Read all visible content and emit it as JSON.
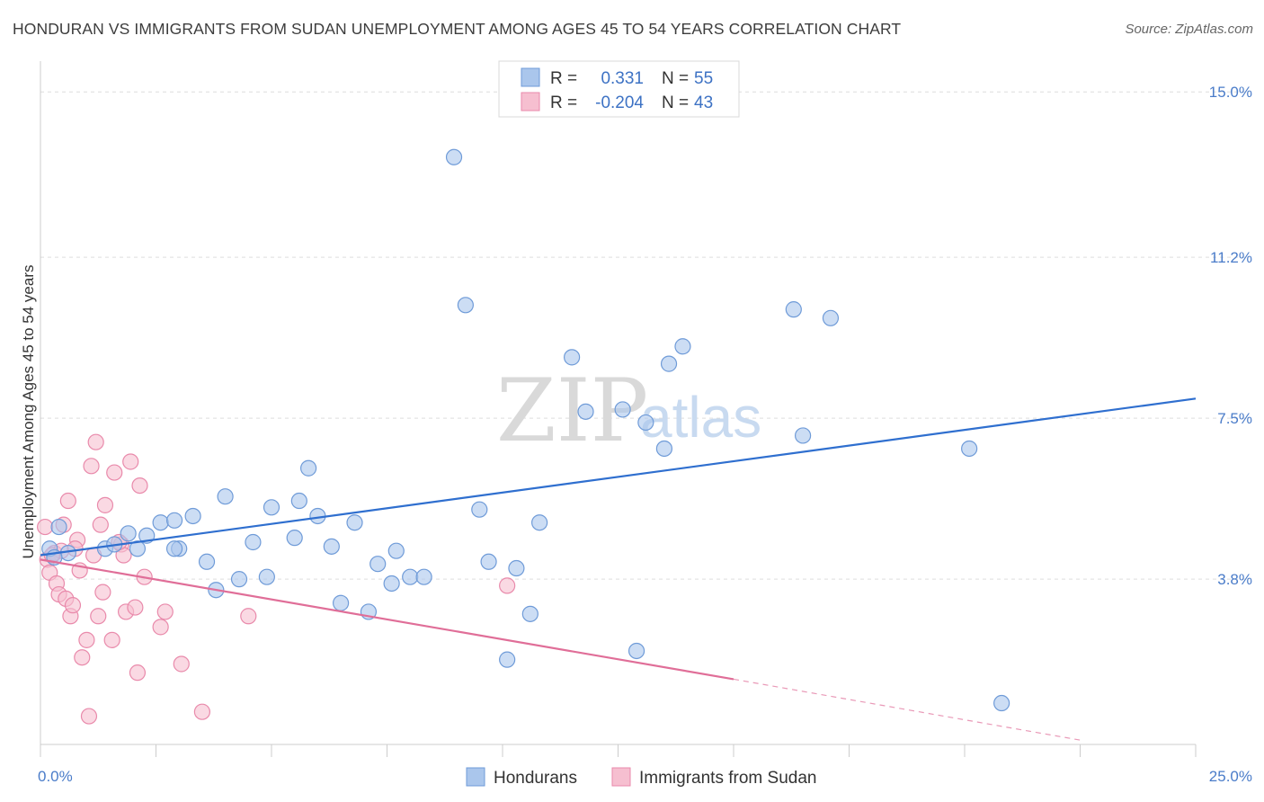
{
  "title": "HONDURAN VS IMMIGRANTS FROM SUDAN UNEMPLOYMENT AMONG AGES 45 TO 54 YEARS CORRELATION CHART",
  "source": "Source: ZipAtlas.com",
  "watermark": {
    "zip": "ZIP",
    "atlas": "atlas"
  },
  "colors": {
    "blue_fill": "#aac6ec",
    "blue_stroke": "#6f9bd8",
    "blue_line": "#2f6fcf",
    "pink_fill": "#f6bfd0",
    "pink_stroke": "#e98aab",
    "pink_line": "#e06e98",
    "grid": "#dddddd",
    "tick_label": "#4a7cc9"
  },
  "legend": {
    "rows": [
      {
        "r_label": "R =",
        "r_value": "0.331",
        "n_label": "N =",
        "n_value": "55",
        "color": "blue"
      },
      {
        "r_label": "R =",
        "r_value": "-0.204",
        "n_label": "N =",
        "n_value": "43",
        "color": "pink"
      }
    ]
  },
  "bottom_legend": [
    "Hondurans",
    "Immigrants from Sudan"
  ],
  "chart_data": {
    "type": "scatter",
    "xlabel": "",
    "ylabel": "Unemployment Among Ages 45 to 54 years",
    "xlim": [
      0,
      25
    ],
    "ylim": [
      0,
      15.5
    ],
    "x_tick_labels": [
      "0.0%",
      "25.0%"
    ],
    "y_ticks": [
      3.8,
      7.5,
      11.2,
      15.0
    ],
    "y_tick_labels": [
      "3.8%",
      "7.5%",
      "11.2%",
      "15.0%"
    ],
    "grid": true,
    "legend_placement": "top-center",
    "series": [
      {
        "name": "Hondurans",
        "color": "blue",
        "r": 0.331,
        "n": 55,
        "trend": {
          "x0": 0,
          "y0": 4.35,
          "x1": 25,
          "y1": 7.95
        },
        "points": [
          [
            0.2,
            4.5
          ],
          [
            0.4,
            5.0
          ],
          [
            0.6,
            4.4
          ],
          [
            1.4,
            4.5
          ],
          [
            1.6,
            4.6
          ],
          [
            1.9,
            4.85
          ],
          [
            2.1,
            4.5
          ],
          [
            2.3,
            4.8
          ],
          [
            2.6,
            5.1
          ],
          [
            2.9,
            5.15
          ],
          [
            3.0,
            4.5
          ],
          [
            3.3,
            5.25
          ],
          [
            3.6,
            4.2
          ],
          [
            3.8,
            3.55
          ],
          [
            4.0,
            5.7
          ],
          [
            4.3,
            3.8
          ],
          [
            4.6,
            4.65
          ],
          [
            4.9,
            3.85
          ],
          [
            5.0,
            5.45
          ],
          [
            5.5,
            4.75
          ],
          [
            5.6,
            5.6
          ],
          [
            5.8,
            6.35
          ],
          [
            6.0,
            5.25
          ],
          [
            6.3,
            4.55
          ],
          [
            6.5,
            3.25
          ],
          [
            6.8,
            5.1
          ],
          [
            7.1,
            3.05
          ],
          [
            7.3,
            4.15
          ],
          [
            7.6,
            3.7
          ],
          [
            7.7,
            4.45
          ],
          [
            8.0,
            3.85
          ],
          [
            8.3,
            3.85
          ],
          [
            8.95,
            13.5
          ],
          [
            9.2,
            10.1
          ],
          [
            9.5,
            5.4
          ],
          [
            9.7,
            4.2
          ],
          [
            10.1,
            1.95
          ],
          [
            10.3,
            4.05
          ],
          [
            10.6,
            3.0
          ],
          [
            10.8,
            5.1
          ],
          [
            11.5,
            8.9
          ],
          [
            11.8,
            7.65
          ],
          [
            12.6,
            7.7
          ],
          [
            12.9,
            2.15
          ],
          [
            13.1,
            7.4
          ],
          [
            13.5,
            6.8
          ],
          [
            13.6,
            8.75
          ],
          [
            13.9,
            9.15
          ],
          [
            16.3,
            10.0
          ],
          [
            16.5,
            7.1
          ],
          [
            17.1,
            9.8
          ],
          [
            20.1,
            6.8
          ],
          [
            20.8,
            0.95
          ],
          [
            0.3,
            4.3
          ],
          [
            2.9,
            4.5
          ]
        ]
      },
      {
        "name": "Immigrants from Sudan",
        "color": "pink",
        "r": -0.204,
        "n": 43,
        "trend": {
          "x0": 0,
          "y0": 4.25,
          "x1": 15,
          "y1": 1.5
        },
        "trend_dashed": {
          "x0": 15,
          "y0": 1.5,
          "x1": 22.5,
          "y1": 0.1
        },
        "points": [
          [
            0.1,
            5.0
          ],
          [
            0.15,
            4.25
          ],
          [
            0.2,
            3.95
          ],
          [
            0.3,
            4.4
          ],
          [
            0.35,
            3.7
          ],
          [
            0.4,
            3.45
          ],
          [
            0.5,
            5.05
          ],
          [
            0.55,
            3.35
          ],
          [
            0.6,
            5.6
          ],
          [
            0.65,
            2.95
          ],
          [
            0.7,
            3.2
          ],
          [
            0.8,
            4.7
          ],
          [
            0.85,
            4.0
          ],
          [
            0.9,
            2.0
          ],
          [
            1.0,
            2.4
          ],
          [
            1.05,
            0.65
          ],
          [
            1.1,
            6.4
          ],
          [
            1.15,
            4.35
          ],
          [
            1.25,
            2.95
          ],
          [
            1.3,
            5.05
          ],
          [
            1.35,
            3.5
          ],
          [
            1.4,
            5.5
          ],
          [
            1.55,
            2.4
          ],
          [
            1.6,
            6.25
          ],
          [
            1.75,
            4.6
          ],
          [
            1.8,
            4.35
          ],
          [
            1.85,
            3.05
          ],
          [
            1.95,
            6.5
          ],
          [
            2.05,
            3.15
          ],
          [
            2.1,
            1.65
          ],
          [
            2.15,
            5.95
          ],
          [
            2.25,
            3.85
          ],
          [
            2.6,
            2.7
          ],
          [
            2.7,
            3.05
          ],
          [
            3.05,
            1.85
          ],
          [
            3.5,
            0.75
          ],
          [
            4.5,
            2.95
          ],
          [
            10.1,
            3.65
          ],
          [
            1.2,
            6.95
          ],
          [
            0.45,
            4.45
          ],
          [
            1.7,
            4.65
          ],
          [
            0.25,
            4.35
          ],
          [
            0.75,
            4.5
          ]
        ]
      }
    ]
  }
}
